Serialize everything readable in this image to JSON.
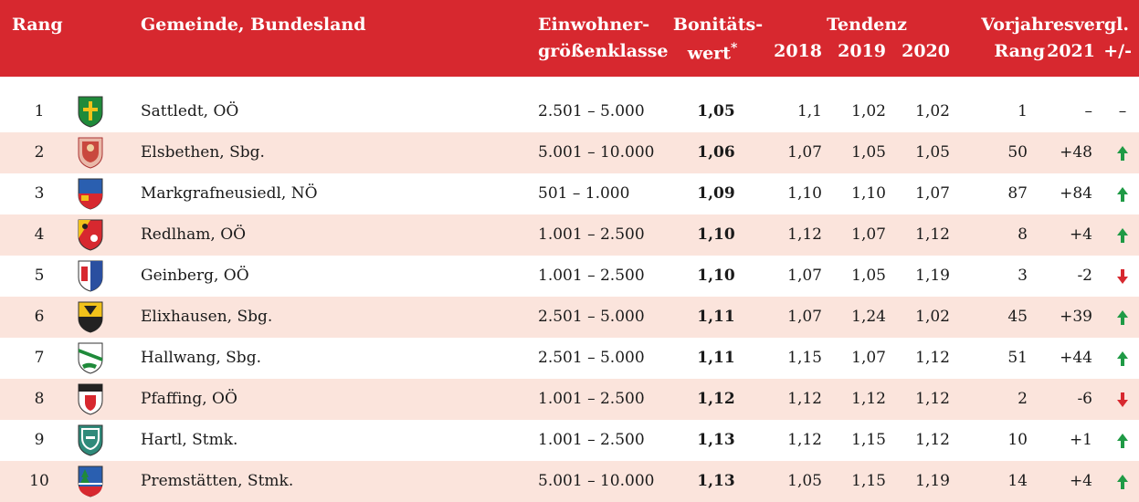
{
  "header": {
    "rank": "Rang",
    "municipality": "Gemeinde, Bundesland",
    "size_line1": "Einwohner-",
    "size_line2": "größenklasse",
    "score_line1": "Bonitäts-",
    "score_line2": "wert",
    "score_mark": "*",
    "trend": "Tendenz",
    "y2018": "2018",
    "y2019": "2019",
    "y2020": "2020",
    "prev_line1": "Vorjahresvergl.",
    "prev_rank": "Rang",
    "prev_year": "2021",
    "prev_diff": "+/-"
  },
  "colors": {
    "header": "#d7282f",
    "row_alt": "#fbe4dc",
    "up": "#1f9a45",
    "down": "#d7282f"
  },
  "rows": [
    {
      "rank": "1",
      "name": "Sattledt, OÖ",
      "size": "2.501 – 5.000",
      "score": "1,05",
      "y2018": "1,1",
      "y2019": "1,02",
      "y2020": "1,02",
      "prev": "1",
      "diff": "–",
      "trend": "none",
      "trend_text": "–",
      "crest": "crest-cross-green"
    },
    {
      "rank": "2",
      "name": "Elsbethen, Sbg.",
      "size": "5.001 – 10.000",
      "score": "1,06",
      "y2018": "1,07",
      "y2019": "1,05",
      "y2020": "1,05",
      "prev": "50",
      "diff": "+48",
      "trend": "up",
      "crest": "crest-red-figure"
    },
    {
      "rank": "3",
      "name": "Markgrafneusiedl, NÖ",
      "size": "501 – 1.000",
      "score": "1,09",
      "y2018": "1,10",
      "y2019": "1,10",
      "y2020": "1,07",
      "prev": "87",
      "diff": "+84",
      "trend": "up",
      "crest": "crest-blue-red"
    },
    {
      "rank": "4",
      "name": "Redlham, OÖ",
      "size": "1.001 – 2.500",
      "score": "1,10",
      "y2018": "1,12",
      "y2019": "1,07",
      "y2020": "1,12",
      "prev": "8",
      "diff": "+4",
      "trend": "up",
      "crest": "crest-red-sun"
    },
    {
      "rank": "5",
      "name": "Geinberg, OÖ",
      "size": "1.001 – 2.500",
      "score": "1,10",
      "y2018": "1,07",
      "y2019": "1,05",
      "y2020": "1,19",
      "prev": "3",
      "diff": "-2",
      "trend": "down",
      "crest": "crest-blue-split"
    },
    {
      "rank": "6",
      "name": "Elixhausen, Sbg.",
      "size": "2.501 – 5.000",
      "score": "1,11",
      "y2018": "1,07",
      "y2019": "1,24",
      "y2020": "1,02",
      "prev": "45",
      "diff": "+39",
      "trend": "up",
      "crest": "crest-gold-black"
    },
    {
      "rank": "7",
      "name": "Hallwang, Sbg.",
      "size": "2.501 – 5.000",
      "score": "1,11",
      "y2018": "1,15",
      "y2019": "1,07",
      "y2020": "1,12",
      "prev": "51",
      "diff": "+44",
      "trend": "up",
      "crest": "crest-green-white"
    },
    {
      "rank": "8",
      "name": "Pfaffing, OÖ",
      "size": "1.001 – 2.500",
      "score": "1,12",
      "y2018": "1,12",
      "y2019": "1,12",
      "y2020": "1,12",
      "prev": "2",
      "diff": "-6",
      "trend": "down",
      "crest": "crest-black-red"
    },
    {
      "rank": "9",
      "name": "Hartl, Stmk.",
      "size": "1.001 – 2.500",
      "score": "1,13",
      "y2018": "1,12",
      "y2019": "1,15",
      "y2020": "1,12",
      "prev": "10",
      "diff": "+1",
      "trend": "up",
      "crest": "crest-teal"
    },
    {
      "rank": "10",
      "name": "Premstätten, Stmk.",
      "size": "5.001 – 10.000",
      "score": "1,13",
      "y2018": "1,05",
      "y2019": "1,15",
      "y2020": "1,19",
      "prev": "14",
      "diff": "+4",
      "trend": "up",
      "crest": "crest-blue-tree"
    }
  ]
}
